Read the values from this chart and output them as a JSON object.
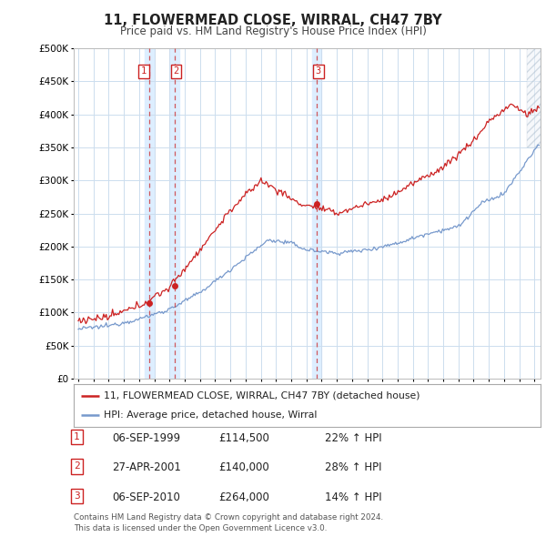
{
  "title": "11, FLOWERMEAD CLOSE, WIRRAL, CH47 7BY",
  "subtitle": "Price paid vs. HM Land Registry's House Price Index (HPI)",
  "xlim": [
    1994.7,
    2025.4
  ],
  "ylim": [
    0,
    500000
  ],
  "yticks": [
    0,
    50000,
    100000,
    150000,
    200000,
    250000,
    300000,
    350000,
    400000,
    450000,
    500000
  ],
  "hpi_color": "#7799cc",
  "price_color": "#cc2222",
  "vline_color": "#cc3333",
  "band_color": "#ddeeff",
  "transaction_dates": [
    1999.67,
    2001.32,
    2010.67
  ],
  "transaction_labels": [
    "1",
    "2",
    "3"
  ],
  "transaction_prices": [
    114500,
    140000,
    264000
  ],
  "legend_entries": [
    "11, FLOWERMEAD CLOSE, WIRRAL, CH47 7BY (detached house)",
    "HPI: Average price, detached house, Wirral"
  ],
  "table_rows": [
    [
      "1",
      "06-SEP-1999",
      "£114,500",
      "22% ↑ HPI"
    ],
    [
      "2",
      "27-APR-2001",
      "£140,000",
      "28% ↑ HPI"
    ],
    [
      "3",
      "06-SEP-2010",
      "£264,000",
      "14% ↑ HPI"
    ]
  ],
  "footnote": "Contains HM Land Registry data © Crown copyright and database right 2024.\nThis data is licensed under the Open Government Licence v3.0.",
  "background_color": "#ffffff",
  "grid_color": "#ccddee"
}
